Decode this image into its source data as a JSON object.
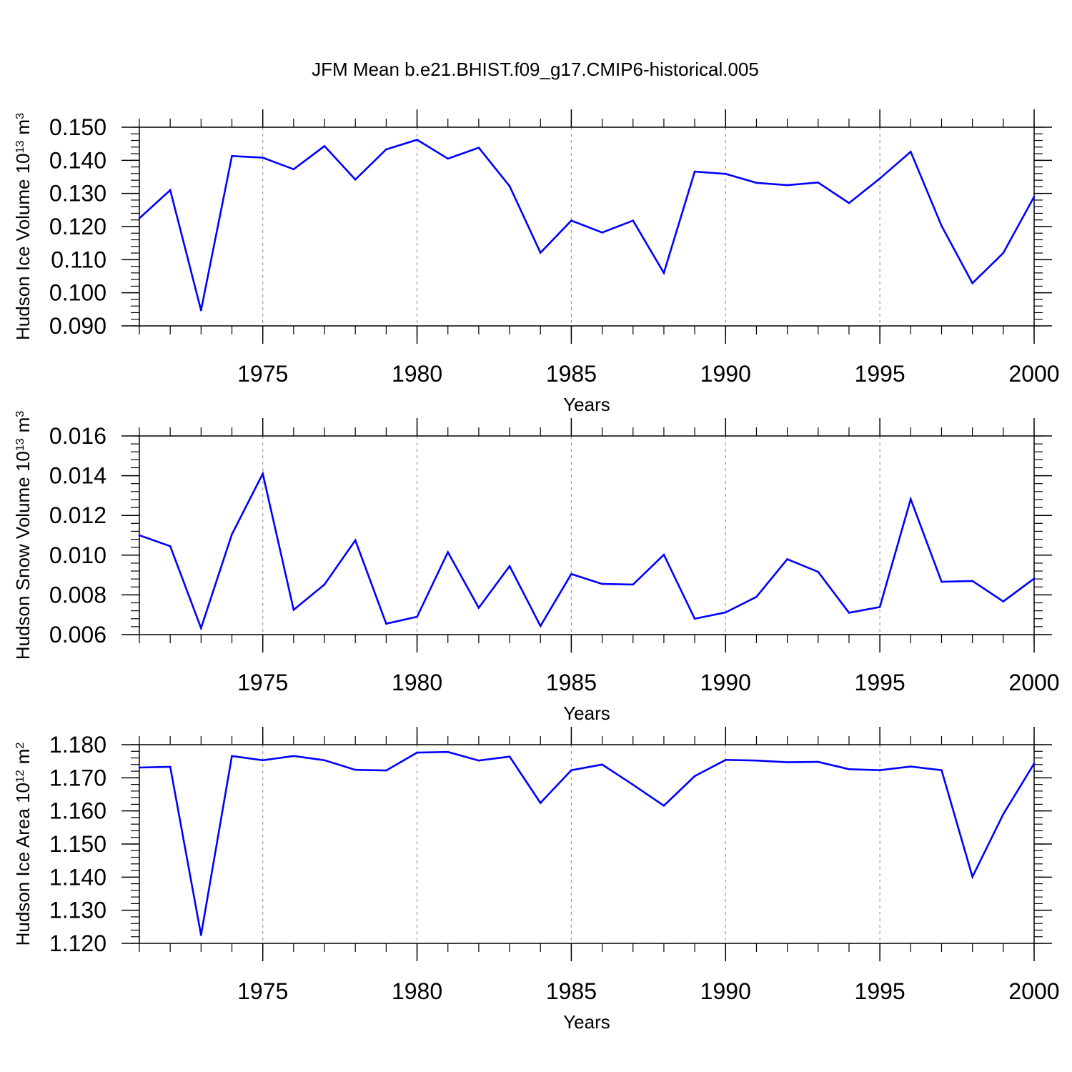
{
  "title": "JFM Mean b.e21.BHIST.f09_g17.CMIP6-historical.005",
  "colors": {
    "line": "#0000ff",
    "axis": "#000000",
    "grid": "#999999"
  },
  "chart_data": [
    {
      "type": "line",
      "name": "ice-volume",
      "ylabel_main": "Hudson Ice Volume 10",
      "ylabel_exp": "13",
      "ylabel_unit": "m",
      "ylabel_unit_exp": "3",
      "xlabel": "Years",
      "xlim": [
        1971,
        2000
      ],
      "ylim": [
        0.09,
        0.15
      ],
      "xticks": [
        1975,
        1980,
        1985,
        1990,
        1995,
        2000
      ],
      "xtick_labels": [
        "1975",
        "1980",
        "1985",
        "1990",
        "1995",
        "2000"
      ],
      "yticks": [
        0.09,
        0.1,
        0.11,
        0.12,
        0.13,
        0.14,
        0.15
      ],
      "ytick_labels": [
        "0.090",
        "0.100",
        "0.110",
        "0.120",
        "0.130",
        "0.140",
        "0.150"
      ],
      "x": [
        1971,
        1972,
        1973,
        1974,
        1975,
        1976,
        1977,
        1978,
        1979,
        1980,
        1981,
        1982,
        1983,
        1984,
        1985,
        1986,
        1987,
        1988,
        1989,
        1990,
        1991,
        1992,
        1993,
        1994,
        1995,
        1996,
        1997,
        1998,
        1999,
        2000
      ],
      "values": [
        0.1225,
        0.131,
        0.0947,
        0.1413,
        0.1408,
        0.1373,
        0.1443,
        0.1342,
        0.1433,
        0.1462,
        0.1405,
        0.1438,
        0.1322,
        0.1121,
        0.1218,
        0.1182,
        0.1218,
        0.106,
        0.1366,
        0.1359,
        0.1332,
        0.1325,
        0.1333,
        0.1271,
        0.1345,
        0.1426,
        0.1202,
        0.1029,
        0.112,
        0.129
      ]
    },
    {
      "type": "line",
      "name": "snow-volume",
      "ylabel_main": "Hudson Snow Volume 10",
      "ylabel_exp": "13",
      "ylabel_unit": "m",
      "ylabel_unit_exp": "3",
      "xlabel": "Years",
      "xlim": [
        1971,
        2000
      ],
      "ylim": [
        0.006,
        0.016
      ],
      "xticks": [
        1975,
        1980,
        1985,
        1990,
        1995,
        2000
      ],
      "xtick_labels": [
        "1975",
        "1980",
        "1985",
        "1990",
        "1995",
        "2000"
      ],
      "yticks": [
        0.006,
        0.008,
        0.01,
        0.012,
        0.014,
        0.016
      ],
      "ytick_labels": [
        "0.006",
        "0.008",
        "0.010",
        "0.012",
        "0.014",
        "0.016"
      ],
      "x": [
        1971,
        1972,
        1973,
        1974,
        1975,
        1976,
        1977,
        1978,
        1979,
        1980,
        1981,
        1982,
        1983,
        1984,
        1985,
        1986,
        1987,
        1988,
        1989,
        1990,
        1991,
        1992,
        1993,
        1994,
        1995,
        1996,
        1997,
        1998,
        1999,
        2000
      ],
      "values": [
        0.011,
        0.01045,
        0.00633,
        0.01105,
        0.0141,
        0.00725,
        0.00852,
        0.01075,
        0.00655,
        0.0069,
        0.01015,
        0.00735,
        0.00945,
        0.00643,
        0.00905,
        0.00855,
        0.00852,
        0.01002,
        0.0068,
        0.00712,
        0.0079,
        0.0098,
        0.00916,
        0.0071,
        0.00739,
        0.01282,
        0.00866,
        0.0087,
        0.00767,
        0.00882
      ]
    },
    {
      "type": "line",
      "name": "ice-area",
      "ylabel_main": "Hudson Ice Area 10",
      "ylabel_exp": "12",
      "ylabel_unit": "m",
      "ylabel_unit_exp": "2",
      "xlabel": "Years",
      "xlim": [
        1971,
        2000
      ],
      "ylim": [
        1.12,
        1.18
      ],
      "xticks": [
        1975,
        1980,
        1985,
        1990,
        1995,
        2000
      ],
      "xtick_labels": [
        "1975",
        "1980",
        "1985",
        "1990",
        "1995",
        "2000"
      ],
      "yticks": [
        1.12,
        1.13,
        1.14,
        1.15,
        1.16,
        1.17,
        1.18
      ],
      "ytick_labels": [
        "1.120",
        "1.130",
        "1.140",
        "1.150",
        "1.160",
        "1.170",
        "1.180"
      ],
      "x": [
        1971,
        1972,
        1973,
        1974,
        1975,
        1976,
        1977,
        1978,
        1979,
        1980,
        1981,
        1982,
        1983,
        1984,
        1985,
        1986,
        1987,
        1988,
        1989,
        1990,
        1991,
        1992,
        1993,
        1994,
        1995,
        1996,
        1997,
        1998,
        1999,
        2000
      ],
      "values": [
        1.1731,
        1.1733,
        1.1225,
        1.1766,
        1.1753,
        1.1766,
        1.1753,
        1.1724,
        1.1722,
        1.1776,
        1.1778,
        1.1752,
        1.1764,
        1.1624,
        1.1723,
        1.174,
        1.1679,
        1.1616,
        1.1705,
        1.1754,
        1.1752,
        1.1747,
        1.1748,
        1.1726,
        1.1723,
        1.1734,
        1.1723,
        1.1401,
        1.159,
        1.1743
      ]
    }
  ]
}
